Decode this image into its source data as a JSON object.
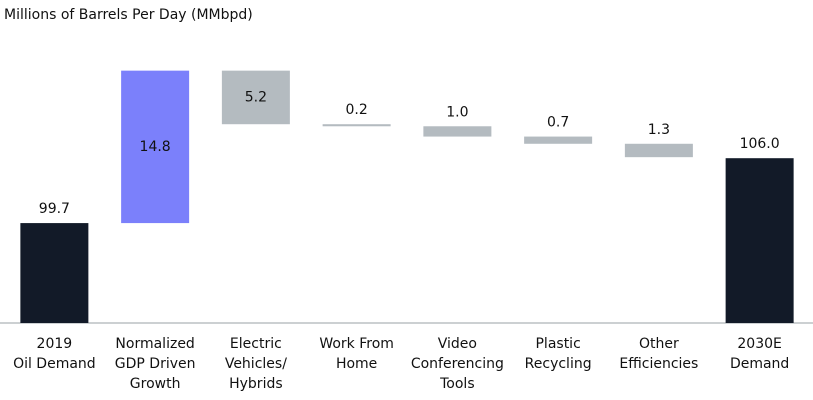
{
  "chart_data": {
    "type": "waterfall",
    "title": "Millions of Barrels Per Day (MMbpd)",
    "categories": [
      [
        "2019",
        "Oil Demand"
      ],
      [
        "Normalized",
        "GDP Driven",
        "Growth"
      ],
      [
        "Electric",
        "Vehicles/",
        "Hybrids"
      ],
      [
        "Work From",
        "Home"
      ],
      [
        "Video",
        "Conferencing",
        "Tools"
      ],
      [
        "Plastic",
        "Recycling"
      ],
      [
        "Other",
        "Efficiencies"
      ],
      [
        "2030E",
        "Demand"
      ]
    ],
    "values": [
      99.7,
      14.8,
      -5.2,
      -0.2,
      -1.0,
      -0.7,
      -1.3,
      106.0
    ],
    "value_labels": [
      "99.7",
      "14.8",
      "5.2",
      "0.2",
      "1.0",
      "0.7",
      "1.3",
      "106.0"
    ],
    "measure": [
      "total",
      "relative",
      "relative",
      "relative",
      "relative",
      "relative",
      "relative",
      "total"
    ],
    "colors": {
      "total": "#121a28",
      "increase": "#7b80fb",
      "decrease": "#b4bbc0"
    },
    "ylim": [
      90,
      120
    ]
  }
}
